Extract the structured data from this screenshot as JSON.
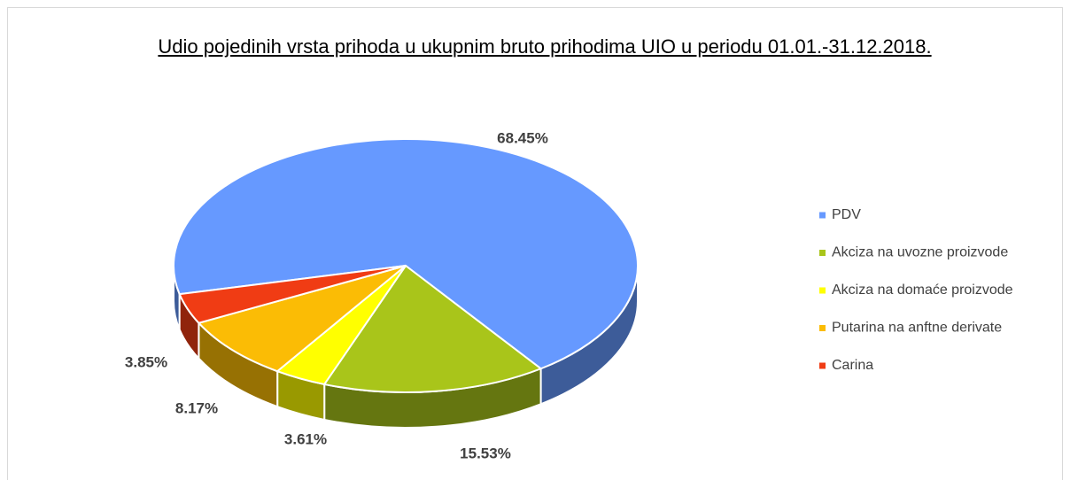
{
  "chart_data": {
    "type": "pie3d",
    "title": "Udio pojedinih vrsta prihoda u ukupnim bruto prihodima UIO u periodu 01.01.-31.12.2018.",
    "categories": [
      "PDV",
      "Akciza na uvozne proizvode",
      "Akciza na domaće proizvode",
      "Putarina na anftne derivate",
      "Carina"
    ],
    "values": [
      68.45,
      15.53,
      3.61,
      8.17,
      3.85
    ],
    "value_labels": [
      "68.45%",
      "15.53%",
      "3.61%",
      "8.17%",
      "3.85%"
    ],
    "colors": [
      "#6699ff",
      "#a9c51a",
      "#ffff00",
      "#fbbc05",
      "#f03c14"
    ],
    "legend": "right"
  }
}
